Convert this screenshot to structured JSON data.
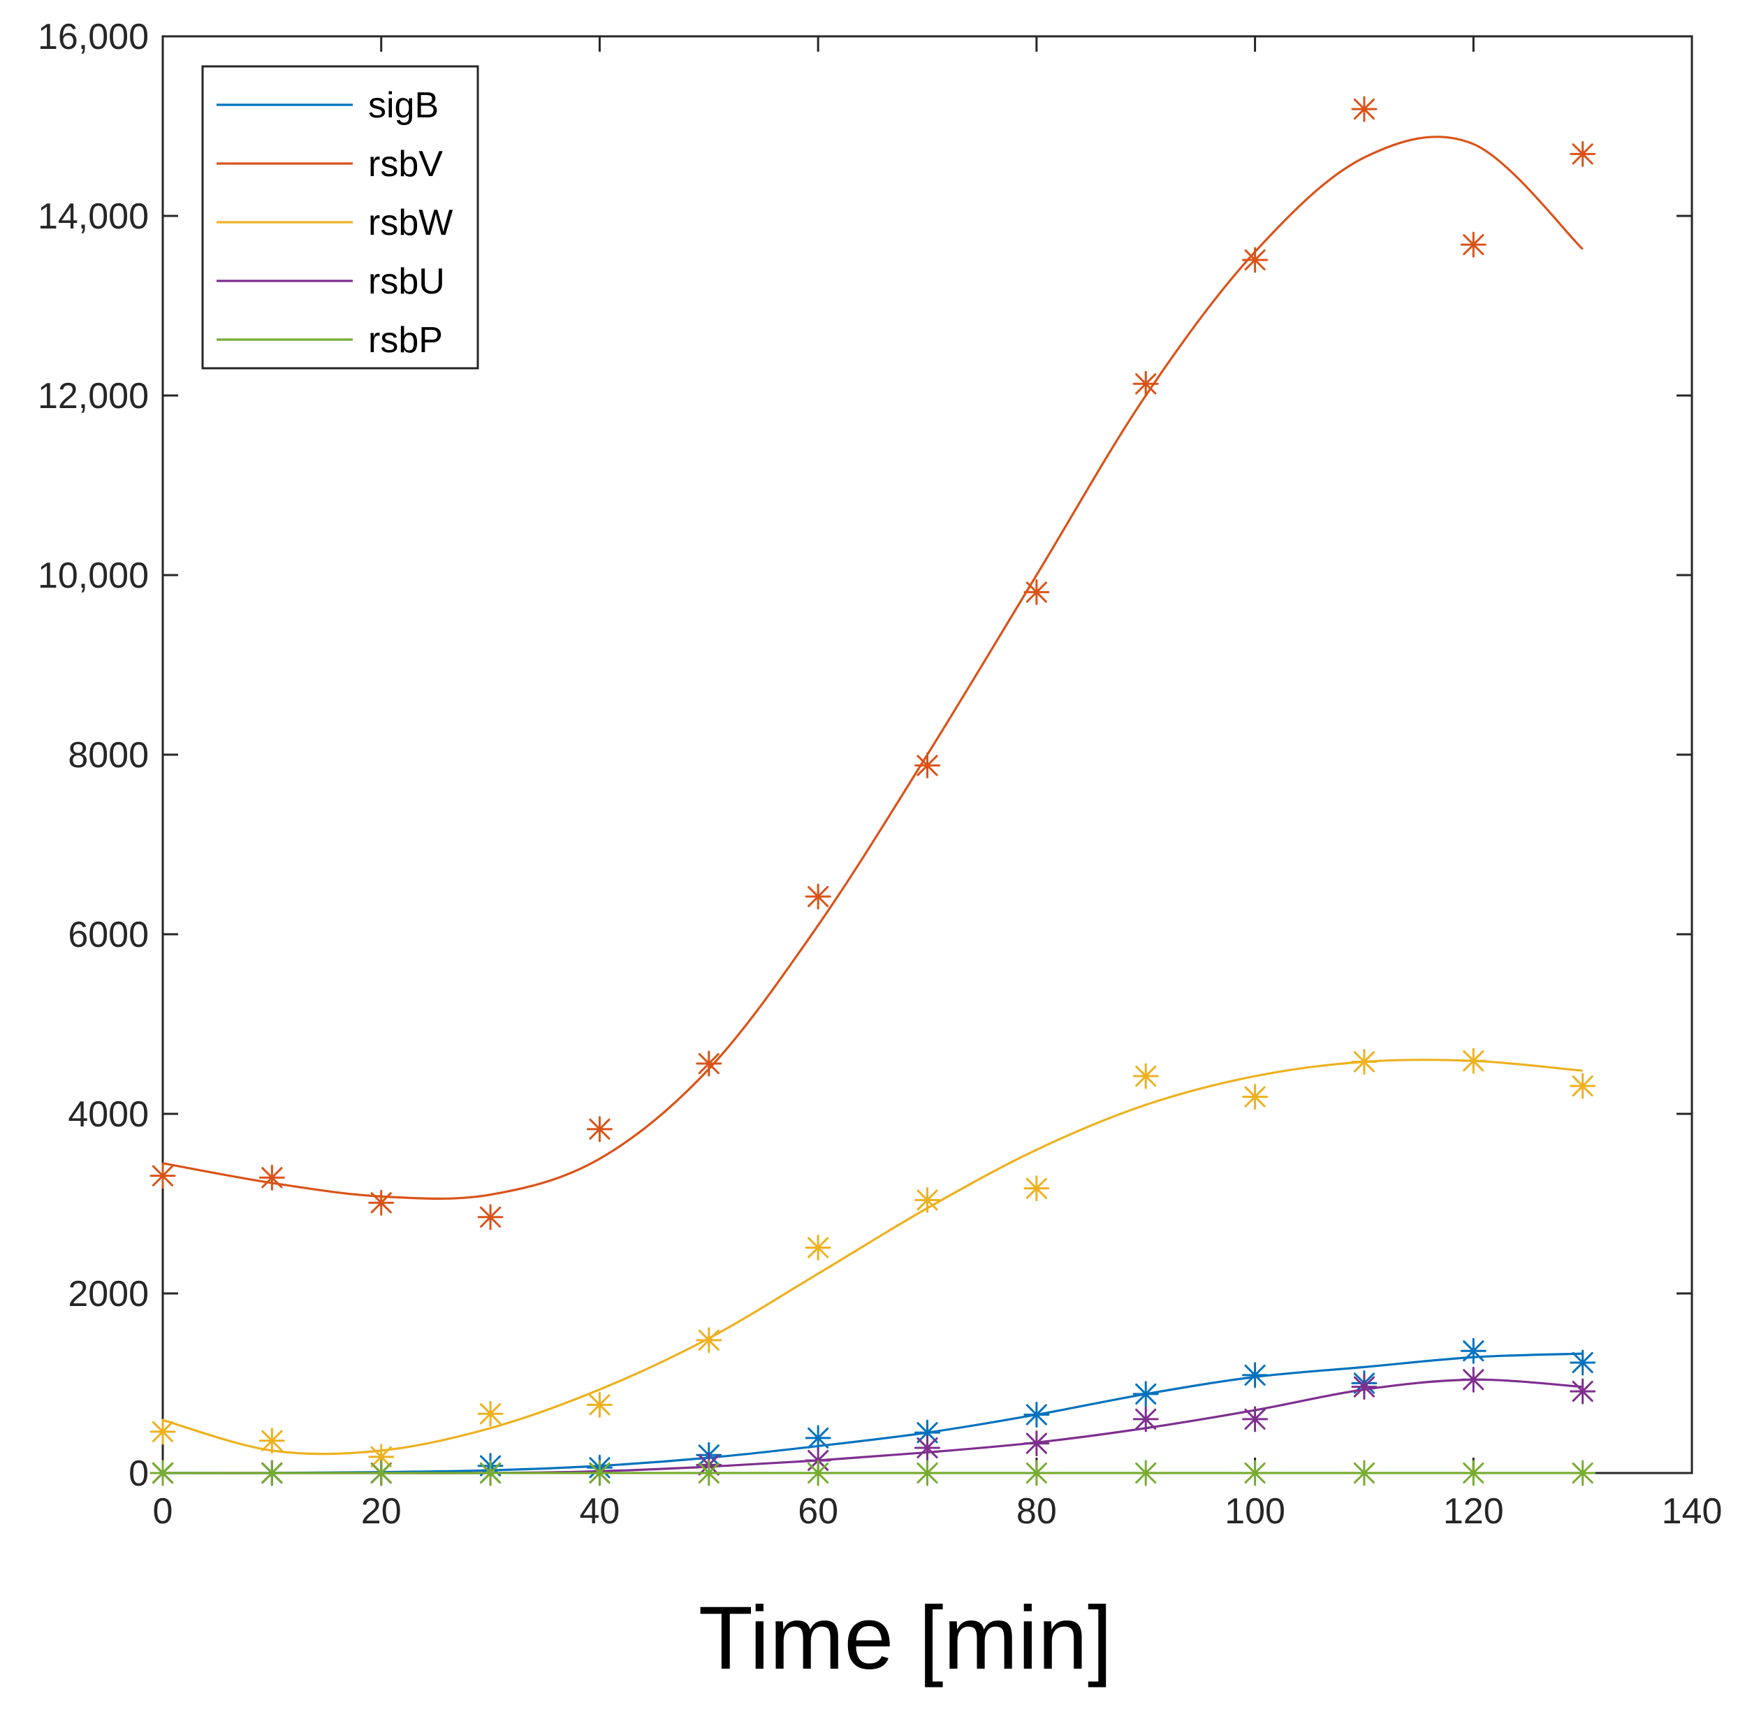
{
  "chart_data": {
    "type": "line",
    "title": "",
    "xlabel": "Time [min]",
    "ylabel": "",
    "xlim": [
      0,
      140
    ],
    "ylim": [
      0,
      16000
    ],
    "grid": false,
    "legend_position": "top-left",
    "x_ticks": [
      0,
      20,
      40,
      60,
      80,
      100,
      120,
      140
    ],
    "x_tick_labels": [
      "0",
      "20",
      "40",
      "60",
      "80",
      "100",
      "120",
      "140"
    ],
    "y_ticks": [
      0,
      2000,
      4000,
      6000,
      8000,
      10000,
      12000,
      14000,
      16000
    ],
    "y_tick_labels": [
      "0",
      "2000",
      "4000",
      "6000",
      "8000",
      "10,000",
      "12,000",
      "14,000",
      "16,000"
    ],
    "x": [
      0,
      10,
      20,
      30,
      40,
      50,
      60,
      70,
      80,
      90,
      100,
      110,
      120,
      130
    ],
    "series": [
      {
        "name": "sigB",
        "color": "#0072BD",
        "markers": [
          0,
          0,
          0,
          80,
          60,
          200,
          390,
          450,
          650,
          880,
          1090,
          1000,
          1360,
          1230
        ],
        "fit": [
          0,
          0,
          10,
          30,
          80,
          170,
          300,
          450,
          650,
          880,
          1070,
          1180,
          1290,
          1330
        ]
      },
      {
        "name": "rsbV",
        "color": "#D95319",
        "markers": [
          3310,
          3290,
          3010,
          2850,
          3830,
          4560,
          6420,
          7880,
          9810,
          12130,
          13510,
          15190,
          13680,
          14690
        ],
        "fit": [
          3450,
          3230,
          3080,
          3100,
          3500,
          4500,
          6100,
          8000,
          10000,
          12000,
          13600,
          14650,
          14800,
          13630
        ]
      },
      {
        "name": "rsbW",
        "color": "#EDB120",
        "markers": [
          460,
          360,
          180,
          660,
          760,
          1480,
          2510,
          3040,
          3170,
          4420,
          4190,
          4580,
          4590,
          4310
        ],
        "fit": [
          590,
          250,
          250,
          500,
          930,
          1500,
          2220,
          2950,
          3600,
          4100,
          4420,
          4580,
          4590,
          4480
        ]
      },
      {
        "name": "rsbU",
        "color": "#7E2F8E",
        "markers": [
          0,
          0,
          0,
          0,
          0,
          90,
          140,
          280,
          330,
          600,
          600,
          960,
          1040,
          910
        ],
        "fit": [
          0,
          0,
          0,
          0,
          20,
          70,
          140,
          230,
          340,
          500,
          700,
          930,
          1040,
          960
        ]
      },
      {
        "name": "rsbP",
        "color": "#77AC30",
        "markers": [
          0,
          0,
          0,
          0,
          0,
          0,
          0,
          0,
          0,
          0,
          0,
          0,
          0,
          0
        ],
        "fit": [
          0,
          0,
          0,
          0,
          0,
          0,
          0,
          0,
          0,
          0,
          0,
          0,
          0,
          0
        ]
      }
    ]
  }
}
